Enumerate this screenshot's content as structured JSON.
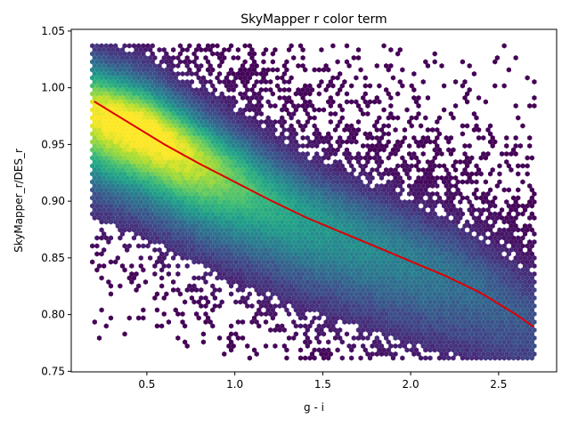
{
  "chart_data": {
    "type": "hexbin",
    "title": "SkyMapper r color term",
    "xlabel": "g - i",
    "ylabel": "SkyMapper_r/DES_r",
    "xlim": [
      0.07,
      2.83
    ],
    "ylim": [
      0.7495,
      1.0515
    ],
    "xticks": [
      0.5,
      1.0,
      1.5,
      2.0,
      2.5
    ],
    "xtick_labels": [
      "0.5",
      "1.0",
      "1.5",
      "2.0",
      "2.5"
    ],
    "yticks": [
      0.75,
      0.8,
      0.85,
      0.9,
      0.95,
      1.0,
      1.05
    ],
    "ytick_labels": [
      "0.75",
      "0.80",
      "0.85",
      "0.90",
      "0.95",
      "1.00",
      "1.05"
    ],
    "colormap": "viridis",
    "density_data_extent": {
      "x": [
        0.19,
        2.71
      ],
      "y": [
        0.761,
        1.037
      ]
    },
    "density_ridge": {
      "x": [
        0.2,
        0.5,
        0.8,
        1.1,
        1.4,
        1.7,
        2.0,
        2.3,
        2.7
      ],
      "y": [
        0.978,
        0.962,
        0.935,
        0.91,
        0.885,
        0.866,
        0.848,
        0.83,
        0.795
      ]
    },
    "fit_line": {
      "color": "#dd0000",
      "x": [
        0.2,
        0.4,
        0.6,
        0.8,
        1.0,
        1.2,
        1.4,
        1.6,
        1.8,
        2.0,
        2.2,
        2.4,
        2.6,
        2.7
      ],
      "y": [
        0.988,
        0.969,
        0.95,
        0.933,
        0.917,
        0.901,
        0.886,
        0.873,
        0.86,
        0.847,
        0.834,
        0.819,
        0.8,
        0.789
      ]
    },
    "grid": false,
    "legend": "none"
  }
}
